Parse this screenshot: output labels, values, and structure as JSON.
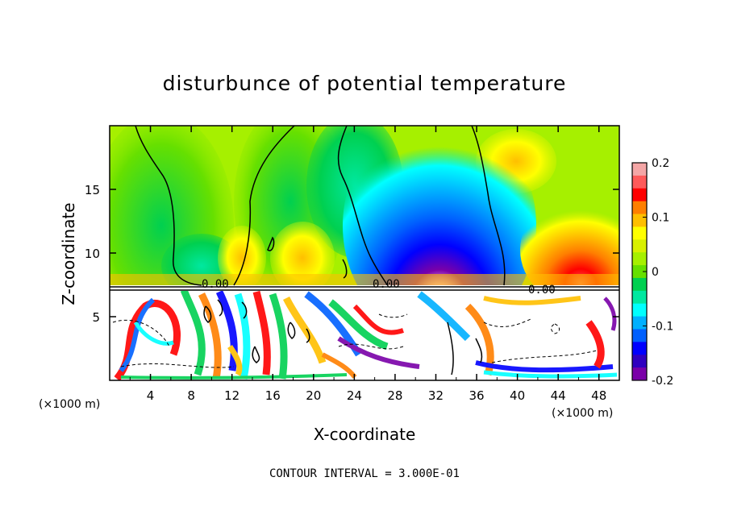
{
  "chart_data": {
    "type": "heatmap",
    "title": "disturbunce of potential temperature",
    "xlabel": "X-coordinate",
    "ylabel": "Z-coordinate",
    "x_unit": "(×1000 m)",
    "x_unit_right": "(×1000 m)",
    "xlim": [
      0,
      50
    ],
    "ylim": [
      0,
      20
    ],
    "x_ticks": [
      "4",
      "8",
      "12",
      "16",
      "20",
      "24",
      "28",
      "32",
      "36",
      "40",
      "44",
      "48"
    ],
    "y_ticks": [
      "5",
      "10",
      "15"
    ],
    "colorbar": {
      "range": [
        -0.2,
        0.2
      ],
      "tick_labels": [
        "0.2",
        "0.1",
        "0",
        "-0.1",
        "-0.2"
      ],
      "colors": [
        "#f4a6a6",
        "#ff5a5a",
        "#ff0000",
        "#ff7f00",
        "#ffbf00",
        "#ffff00",
        "#d8f000",
        "#a6f000",
        "#66e000",
        "#00d050",
        "#00e8a0",
        "#00ffff",
        "#00b0ff",
        "#0060ff",
        "#0000ff",
        "#3000c0",
        "#7a00a8"
      ]
    },
    "contour_labels": [
      "0.00",
      "0.00",
      "0.00"
    ],
    "footnote": "CONTOUR INTERVAL = 3.000E-01"
  }
}
